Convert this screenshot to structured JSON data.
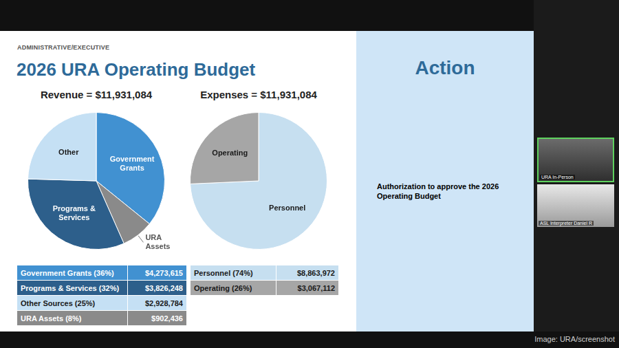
{
  "slide": {
    "section": "ADMINISTRATIVE/EXECUTIVE",
    "title": "2026 URA Operating Budget",
    "action_heading": "Action",
    "action_text": "Authorization to approve the 2026 Operating Budget"
  },
  "chart_data": [
    {
      "type": "pie",
      "title": "Revenue = $11,931,084",
      "categories": [
        "Government Grants",
        "URA Assets",
        "Programs & Services",
        "Other"
      ],
      "values": [
        4273615,
        902436,
        3826248,
        2928784
      ],
      "colors": [
        "#4191d1",
        "#8a8a8a",
        "#2d5f8b",
        "#c5e0f4"
      ]
    },
    {
      "type": "pie",
      "title": "Expenses = $11,931,084",
      "categories": [
        "Personnel",
        "Operating"
      ],
      "values": [
        8863972,
        3067112
      ],
      "colors": [
        "#c6dff0",
        "#a6a6a6"
      ]
    }
  ],
  "tables": [
    {
      "rows": [
        [
          "Government Grants (36%)",
          "$4,273,615"
        ],
        [
          "Programs & Services (32%)",
          "$3,826,248"
        ],
        [
          "Other Sources (25%)",
          "$2,928,784"
        ],
        [
          "URA Assets (8%)",
          "$902,436"
        ]
      ],
      "colors": [
        "#4191d1",
        "#2d5f8b",
        "#c5e0f4",
        "#8a8a8a"
      ]
    },
    {
      "rows": [
        [
          "Personnel (74%)",
          "$8,863,972"
        ],
        [
          "Operating (26%)",
          "$3,067,112"
        ]
      ],
      "colors": [
        "#c6dff0",
        "#a6a6a6"
      ]
    }
  ],
  "screen": {
    "tiles": [
      "URA In-Person",
      "ASL Interpreter Daniel R"
    ],
    "caption": "Image: URA/screenshot"
  }
}
